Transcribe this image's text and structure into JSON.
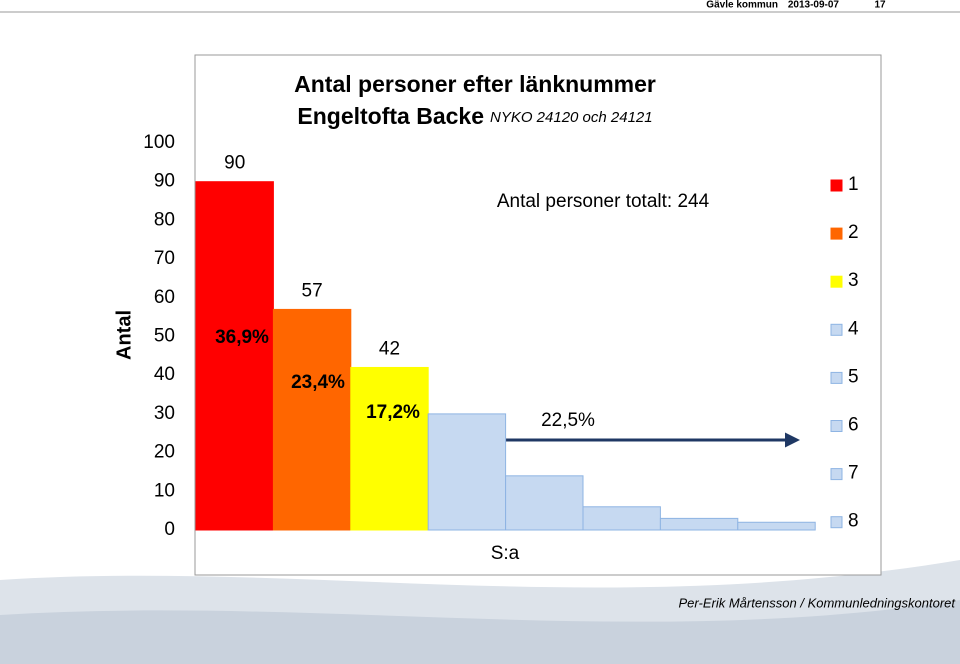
{
  "header": {
    "org": "Gävle kommun",
    "date": "2013-09-07",
    "page": "17"
  },
  "footer": "Per-Erik Mårtensson / Kommunledningskontoret",
  "chart_data": {
    "type": "bar",
    "title": "Antal personer efter länknummer",
    "subtitle": "Engeltofta Backe",
    "subtitle_note": "NYKO 24120 och 24121",
    "y_label": "Antal",
    "categories": [
      "1",
      "2",
      "3",
      "4",
      "5",
      "6",
      "7",
      "8"
    ],
    "values": [
      90,
      57,
      42,
      30,
      14,
      6,
      3,
      2
    ],
    "value_labels": [
      "90",
      "57",
      "42",
      null,
      null,
      null,
      null,
      null
    ],
    "colors": [
      "#ff0000",
      "#ff6600",
      "#ffff00",
      "#c6d9f1",
      "#c6d9f1",
      "#c6d9f1",
      "#c6d9f1",
      "#c6d9f1"
    ],
    "ylim": [
      0,
      100
    ],
    "yticks": [
      0,
      10,
      20,
      30,
      40,
      50,
      60,
      70,
      80,
      90,
      100
    ],
    "grid": false,
    "legend": "right",
    "share_labels": [
      "36,9%",
      "23,4%",
      "17,2%"
    ],
    "rest_share_label": "22,5%",
    "sum_label": "S:a",
    "total_label": "Antal personer totalt: 244"
  }
}
